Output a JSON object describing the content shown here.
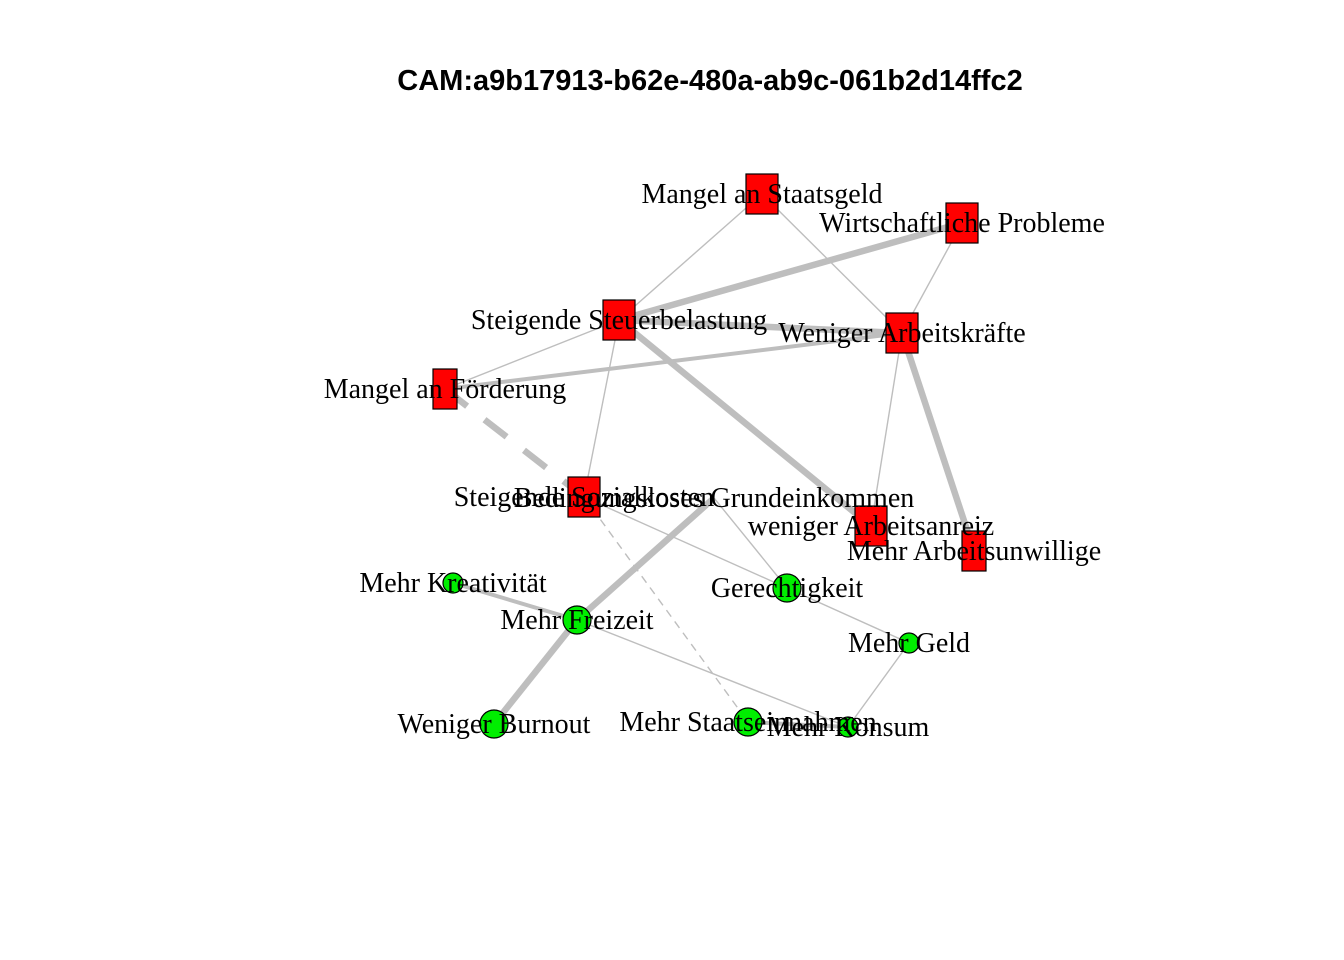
{
  "title": "CAM:a9b17913-b62e-480a-ab9c-061b2d14ffc2",
  "colors": {
    "negative_node": "#ff0000",
    "positive_node": "#00ee00",
    "edge": "#bebebe",
    "node_border": "#000000",
    "background": "#ffffff"
  },
  "nodes": [
    {
      "id": "n1",
      "label": "Mangel an Staatsgeld",
      "valence": "negative",
      "size": "medium"
    },
    {
      "id": "n2",
      "label": "Wirtschaftliche Probleme",
      "valence": "negative",
      "size": "medium"
    },
    {
      "id": "n3",
      "label": "Steigende Steuerbelastung",
      "valence": "negative",
      "size": "medium"
    },
    {
      "id": "n4",
      "label": "Weniger Arbeitskräfte",
      "valence": "negative",
      "size": "medium"
    },
    {
      "id": "n5",
      "label": "Mangel an Förderung",
      "valence": "negative",
      "size": "small"
    },
    {
      "id": "n6",
      "label": "Steigende Sozialkosten",
      "valence": "negative",
      "size": "medium"
    },
    {
      "id": "n7",
      "label": "Bedingungsloses Grundeinkommen",
      "valence": "neutral",
      "size": "none"
    },
    {
      "id": "n8",
      "label": "weniger Arbeitsanreiz",
      "valence": "negative",
      "size": "medium"
    },
    {
      "id": "n9",
      "label": "Mehr Arbeitsunwillige",
      "valence": "negative",
      "size": "small"
    },
    {
      "id": "n10",
      "label": "Mehr Kreativität",
      "valence": "positive",
      "size": "small"
    },
    {
      "id": "n11",
      "label": "Gerechtigkeit",
      "valence": "positive",
      "size": "medium"
    },
    {
      "id": "n12",
      "label": "Mehr Freizeit",
      "valence": "positive",
      "size": "medium"
    },
    {
      "id": "n13",
      "label": "Mehr Geld",
      "valence": "positive",
      "size": "small"
    },
    {
      "id": "n14",
      "label": "Weniger Burnout",
      "valence": "positive",
      "size": "medium"
    },
    {
      "id": "n15",
      "label": "Mehr Staatseinnahmen",
      "valence": "positive",
      "size": "medium"
    },
    {
      "id": "n16",
      "label": "Mehr Konsum",
      "valence": "positive",
      "size": "small"
    }
  ],
  "edges": [
    {
      "from": "n1",
      "to": "n3",
      "weight": "thin",
      "style": "solid"
    },
    {
      "from": "n1",
      "to": "n4",
      "weight": "thin",
      "style": "solid"
    },
    {
      "from": "n2",
      "to": "n3",
      "weight": "thick",
      "style": "solid"
    },
    {
      "from": "n2",
      "to": "n4",
      "weight": "thin",
      "style": "solid"
    },
    {
      "from": "n3",
      "to": "n4",
      "weight": "thick",
      "style": "solid"
    },
    {
      "from": "n3",
      "to": "n5",
      "weight": "thin",
      "style": "solid"
    },
    {
      "from": "n3",
      "to": "n6",
      "weight": "thin",
      "style": "solid"
    },
    {
      "from": "n3",
      "to": "n8",
      "weight": "thick",
      "style": "solid"
    },
    {
      "from": "n4",
      "to": "n5",
      "weight": "medium",
      "style": "solid"
    },
    {
      "from": "n4",
      "to": "n8",
      "weight": "thin",
      "style": "solid"
    },
    {
      "from": "n4",
      "to": "n9",
      "weight": "thick",
      "style": "solid"
    },
    {
      "from": "n5",
      "to": "n6",
      "weight": "thick",
      "style": "dashed"
    },
    {
      "from": "n6",
      "to": "n11",
      "weight": "thin",
      "style": "solid"
    },
    {
      "from": "n6",
      "to": "n15",
      "weight": "thin",
      "style": "dashed"
    },
    {
      "from": "n7",
      "to": "n11",
      "weight": "thin",
      "style": "solid"
    },
    {
      "from": "n7",
      "to": "n12",
      "weight": "thick",
      "style": "solid"
    },
    {
      "from": "n10",
      "to": "n12",
      "weight": "medium",
      "style": "solid"
    },
    {
      "from": "n12",
      "to": "n14",
      "weight": "thick",
      "style": "solid"
    },
    {
      "from": "n12",
      "to": "n16",
      "weight": "thin",
      "style": "solid"
    },
    {
      "from": "n11",
      "to": "n13",
      "weight": "thin",
      "style": "solid"
    },
    {
      "from": "n13",
      "to": "n16",
      "weight": "thin",
      "style": "solid"
    },
    {
      "from": "n15",
      "to": "n16",
      "weight": "medium",
      "style": "solid"
    }
  ]
}
